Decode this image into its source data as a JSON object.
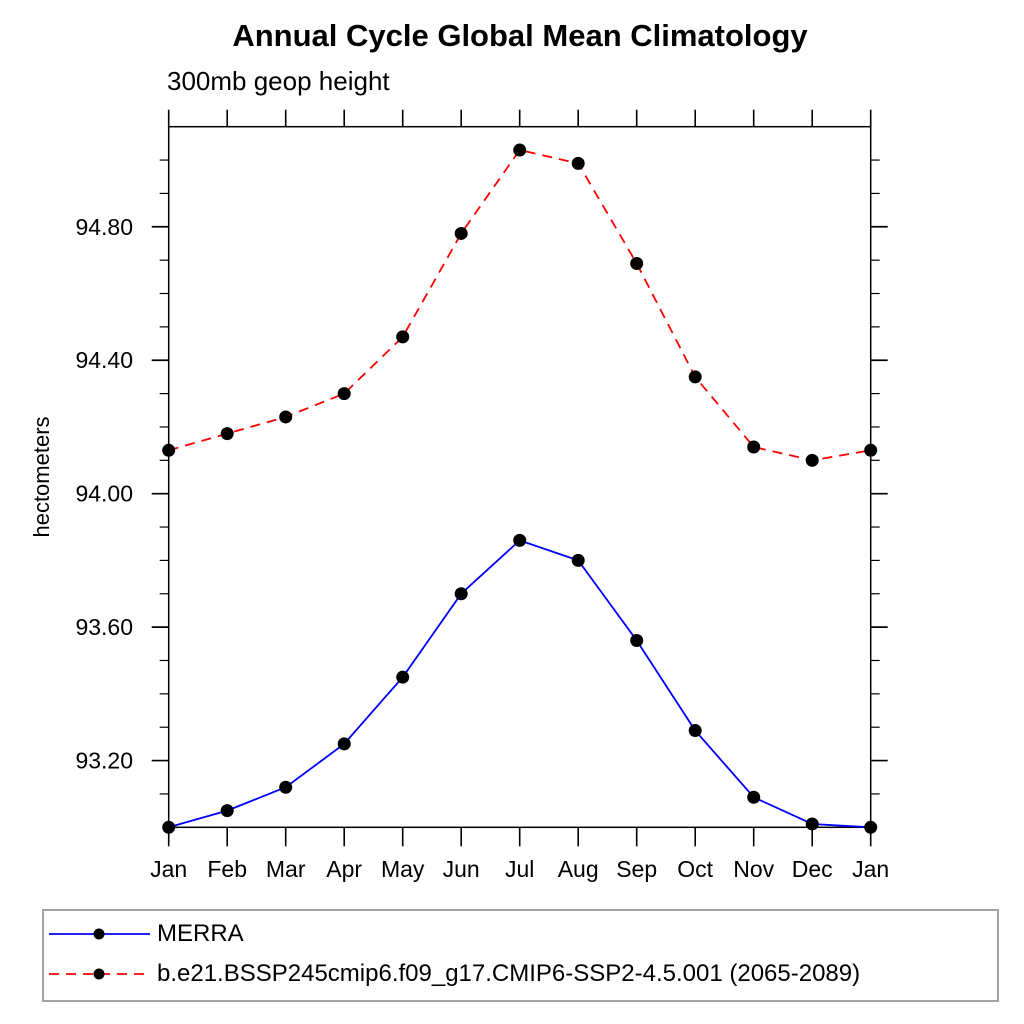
{
  "header": {
    "title": "Annual Cycle Global Mean Climatology",
    "subtitle": "300mb geop height"
  },
  "chart_data": {
    "type": "line",
    "title": "Annual Cycle Global Mean Climatology",
    "subtitle": "300mb geop height",
    "xlabel": "",
    "ylabel": "hectometers",
    "x_categories": [
      "Jan",
      "Feb",
      "Mar",
      "Apr",
      "May",
      "Jun",
      "Jul",
      "Aug",
      "Sep",
      "Oct",
      "Nov",
      "Dec",
      "Jan"
    ],
    "ylim": [
      93.0,
      95.1
    ],
    "ytick_major_values": [
      93.2,
      93.6,
      94.0,
      94.4,
      94.8
    ],
    "ytick_major_labels": [
      "93.20",
      "93.60",
      "94.00",
      "94.40",
      "94.80"
    ],
    "ytick_minor_step": 0.1,
    "grid": false,
    "frame_color": "#000000",
    "marker_color": "#000000",
    "legend_position": "bottom-left-box",
    "series": [
      {
        "name": "MERRA",
        "color": "#0000ff",
        "line_style": "solid",
        "marker": "filled-circle",
        "values": [
          93.0,
          93.05,
          93.12,
          93.25,
          93.45,
          93.7,
          93.86,
          93.8,
          93.56,
          93.29,
          93.09,
          93.01,
          93.0
        ]
      },
      {
        "name": "b.e21.BSSP245cmip6.f09_g17.CMIP6-SSP2-4.5.001 (2065-2089)",
        "color": "#ff0000",
        "line_style": "dashed",
        "marker": "filled-circle",
        "values": [
          94.13,
          94.18,
          94.23,
          94.3,
          94.47,
          94.78,
          95.03,
          94.99,
          94.69,
          94.35,
          94.14,
          94.1,
          94.13
        ]
      }
    ]
  }
}
